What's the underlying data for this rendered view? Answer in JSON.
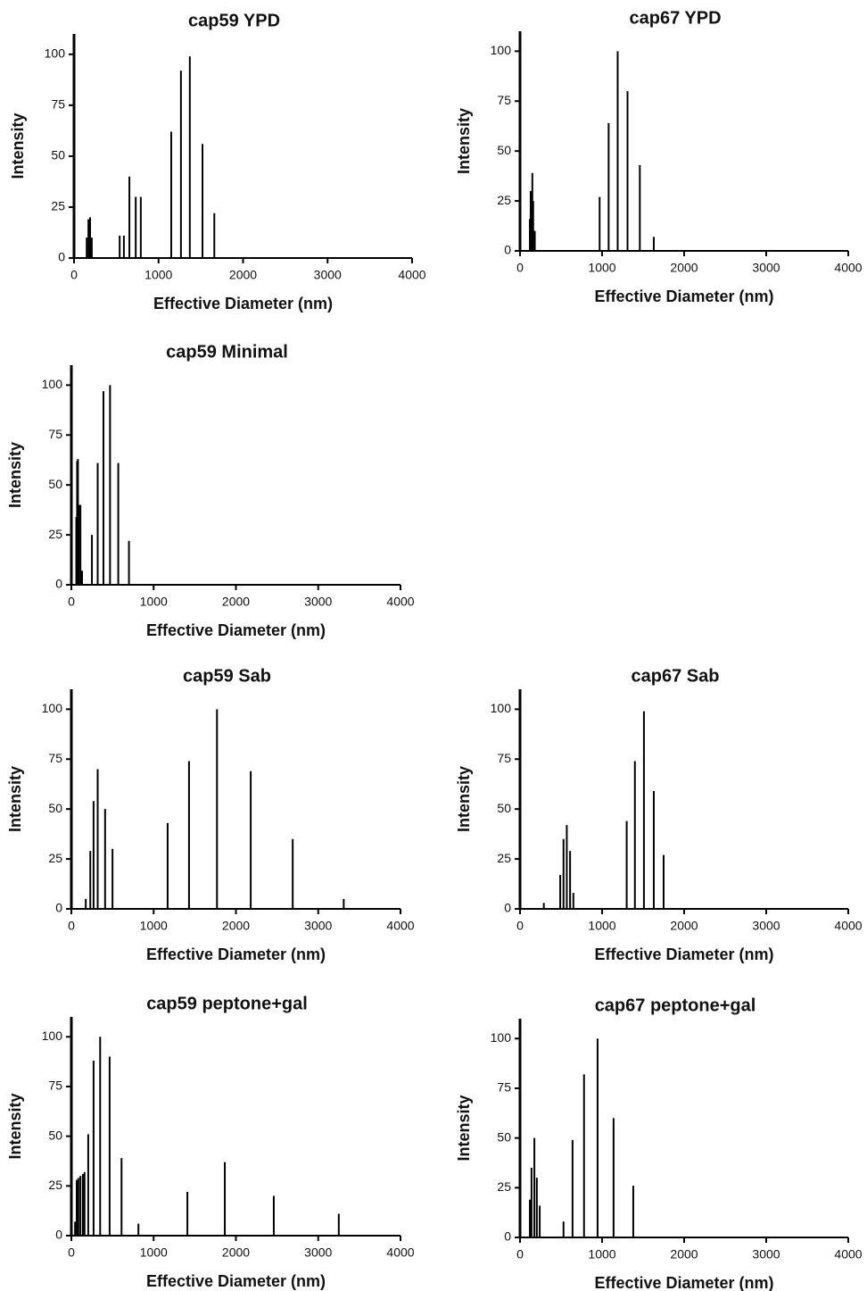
{
  "chart_data": [
    {
      "type": "bar",
      "title": "cap59 YPD",
      "x_label": "Effective Diameter (nm)",
      "y_label": "Intensity",
      "x": [
        150,
        170,
        190,
        210,
        540,
        590,
        655,
        730,
        790,
        1150,
        1265,
        1370,
        1520,
        1660
      ],
      "values": [
        10,
        19,
        20,
        10,
        11,
        11,
        40,
        30,
        30,
        62,
        92,
        99,
        56,
        22
      ],
      "xlim": [
        0,
        4000
      ],
      "ylim": [
        0,
        110
      ],
      "xticks": [
        0,
        1000,
        2000,
        3000,
        4000
      ],
      "yticks": [
        0,
        25,
        50,
        75,
        100
      ],
      "color": "#000000"
    },
    {
      "type": "bar",
      "title": "cap67 YPD",
      "x_label": "Effective Diameter (nm)",
      "y_label": "Intensity",
      "x": [
        120,
        130,
        150,
        160,
        180,
        970,
        1080,
        1190,
        1310,
        1460,
        1630
      ],
      "values": [
        16,
        30,
        39,
        25,
        10,
        27,
        64,
        100,
        80,
        43,
        7
      ],
      "xlim": [
        0,
        4000
      ],
      "ylim": [
        0,
        110
      ],
      "xticks": [
        0,
        1000,
        2000,
        3000,
        4000
      ],
      "yticks": [
        0,
        25,
        50,
        75,
        100
      ],
      "color": "#000000"
    },
    {
      "type": "bar",
      "title": "cap59 Minimal",
      "x_label": "Effective Diameter (nm)",
      "y_label": "Intensity",
      "x": [
        60,
        70,
        80,
        90,
        110,
        130,
        250,
        320,
        390,
        470,
        570,
        700
      ],
      "values": [
        34,
        62,
        63,
        40,
        40,
        7,
        25,
        61,
        97,
        100,
        61,
        22
      ],
      "xlim": [
        0,
        4000
      ],
      "ylim": [
        0,
        110
      ],
      "xticks": [
        0,
        1000,
        2000,
        3000,
        4000
      ],
      "yticks": [
        0,
        25,
        50,
        75,
        100
      ],
      "color": "#000000"
    },
    {
      "type": "bar",
      "title": "cap59 Sab",
      "x_label": "Effective Diameter (nm)",
      "y_label": "Intensity",
      "x": [
        175,
        230,
        270,
        320,
        410,
        500,
        1170,
        1430,
        1770,
        2180,
        2690,
        3310
      ],
      "values": [
        5,
        29,
        54,
        70,
        50,
        30,
        43,
        74,
        100,
        69,
        35,
        5
      ],
      "xlim": [
        0,
        4000
      ],
      "ylim": [
        0,
        110
      ],
      "xticks": [
        0,
        1000,
        2000,
        3000,
        4000
      ],
      "yticks": [
        0,
        25,
        50,
        75,
        100
      ],
      "color": "#000000"
    },
    {
      "type": "bar",
      "title": "cap67 Sab",
      "x_label": "Effective Diameter (nm)",
      "y_label": "Intensity",
      "x": [
        290,
        490,
        530,
        570,
        610,
        650,
        1300,
        1400,
        1510,
        1630,
        1750
      ],
      "values": [
        3,
        17,
        35,
        42,
        29,
        8,
        44,
        74,
        99,
        59,
        27
      ],
      "xlim": [
        0,
        4000
      ],
      "ylim": [
        0,
        110
      ],
      "xticks": [
        0,
        1000,
        2000,
        3000,
        4000
      ],
      "yticks": [
        0,
        25,
        50,
        75,
        100
      ],
      "color": "#000000"
    },
    {
      "type": "bar",
      "title": "cap59 peptone+gal",
      "x_label": "Effective Diameter (nm)",
      "y_label": "Intensity",
      "x": [
        45,
        65,
        85,
        110,
        140,
        160,
        205,
        270,
        350,
        465,
        610,
        815,
        1410,
        1865,
        2460,
        3250
      ],
      "values": [
        7,
        28,
        29,
        30,
        31,
        32,
        51,
        88,
        100,
        90,
        39,
        6,
        22,
        37,
        20,
        11
      ],
      "xlim": [
        0,
        4000
      ],
      "ylim": [
        0,
        110
      ],
      "xticks": [
        0,
        1000,
        2000,
        3000,
        4000
      ],
      "yticks": [
        0,
        25,
        50,
        75,
        100
      ],
      "color": "#000000"
    },
    {
      "type": "bar",
      "title": "cap67 peptone+gal",
      "x_label": "Effective Diameter (nm)",
      "y_label": "Intensity",
      "x": [
        120,
        140,
        175,
        205,
        240,
        530,
        640,
        780,
        945,
        1140,
        1380
      ],
      "values": [
        19,
        35,
        50,
        30,
        16,
        8,
        49,
        82,
        100,
        60,
        26
      ],
      "xlim": [
        0,
        4000
      ],
      "ylim": [
        0,
        110
      ],
      "xticks": [
        0,
        1000,
        2000,
        3000,
        4000
      ],
      "yticks": [
        0,
        25,
        50,
        75,
        100
      ],
      "color": "#000000"
    }
  ]
}
